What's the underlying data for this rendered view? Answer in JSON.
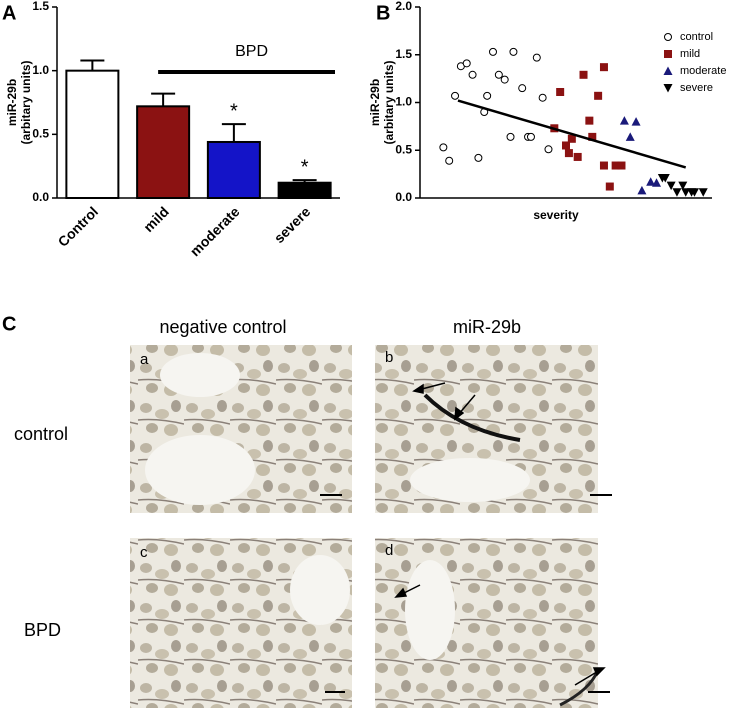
{
  "chart_data": [
    {
      "type": "bar",
      "panel": "A",
      "y_label": "miR-29b",
      "y_label_2": "(arbitary units)",
      "categories": [
        "Control",
        "mild",
        "moderate",
        "severe"
      ],
      "values": [
        1.0,
        0.72,
        0.44,
        0.12
      ],
      "errors": [
        0.08,
        0.1,
        0.14,
        0.02
      ],
      "colors": [
        "#ffffff",
        "#8b1212",
        "#1414c8",
        "#000000"
      ],
      "ylim": [
        0,
        1.5
      ],
      "yticks": [
        {
          "value": 0,
          "label": "0.0"
        },
        0.5,
        {
          "value": 1.0,
          "label": "1.0"
        },
        1.5
      ],
      "annotations": [
        "BPD",
        "*",
        "*"
      ]
    },
    {
      "type": "scatter",
      "panel": "B",
      "y_label": "miR-29b",
      "y_label_2": "(arbitary units)",
      "x_label": "severity",
      "xlim": [
        0,
        100
      ],
      "ylim": [
        0,
        2.0
      ],
      "yticks": [
        {
          "value": 0,
          "label": "0.0"
        },
        0.5,
        {
          "value": 1.0,
          "label": "1.0"
        },
        1.5,
        {
          "value": 2.0,
          "label": "2.0"
        }
      ],
      "series": [
        {
          "name": "control",
          "color": "#000000",
          "marker": "circle",
          "x": [
            8,
            10,
            12,
            14,
            16,
            18,
            22,
            23,
            20,
            25,
            27,
            29,
            32,
            35,
            31,
            37,
            38,
            40,
            42,
            44
          ],
          "values": [
            0.53,
            0.39,
            1.07,
            1.38,
            1.41,
            1.29,
            0.9,
            1.07,
            0.42,
            1.53,
            1.29,
            1.24,
            1.53,
            1.15,
            0.64,
            0.64,
            0.64,
            1.47,
            1.05,
            0.51
          ]
        },
        {
          "name": "mild",
          "color": "#8b1212",
          "marker": "square",
          "x": [
            46,
            48,
            51,
            50,
            52,
            54,
            56,
            58,
            59,
            61,
            63,
            63,
            67,
            69,
            65
          ],
          "values": [
            0.73,
            1.11,
            0.47,
            0.55,
            0.62,
            0.43,
            1.29,
            0.81,
            0.64,
            1.07,
            1.37,
            0.34,
            0.34,
            0.34,
            0.12
          ]
        },
        {
          "name": "moderate",
          "color": "#1a1a7a",
          "marker": "triangle-up",
          "x": [
            70,
            74,
            72,
            76,
            79,
            81
          ],
          "values": [
            0.81,
            0.8,
            0.64,
            0.08,
            0.17,
            0.16
          ]
        },
        {
          "name": "severe",
          "color": "#000000",
          "marker": "triangle-down",
          "x": [
            83,
            84,
            86,
            88,
            90,
            91,
            93,
            94,
            97
          ],
          "values": [
            0.21,
            0.21,
            0.13,
            0.06,
            0.13,
            0.06,
            0.06,
            0.06,
            0.06
          ]
        }
      ],
      "trendline": {
        "x": [
          13,
          91
        ],
        "values": [
          1.02,
          0.32
        ]
      }
    }
  ],
  "panel_c": {
    "label": "C",
    "columns": [
      "negative control",
      "miR-29b"
    ],
    "rows": [
      "control",
      "BPD"
    ],
    "images": [
      "a",
      "b",
      "c",
      "d"
    ]
  }
}
